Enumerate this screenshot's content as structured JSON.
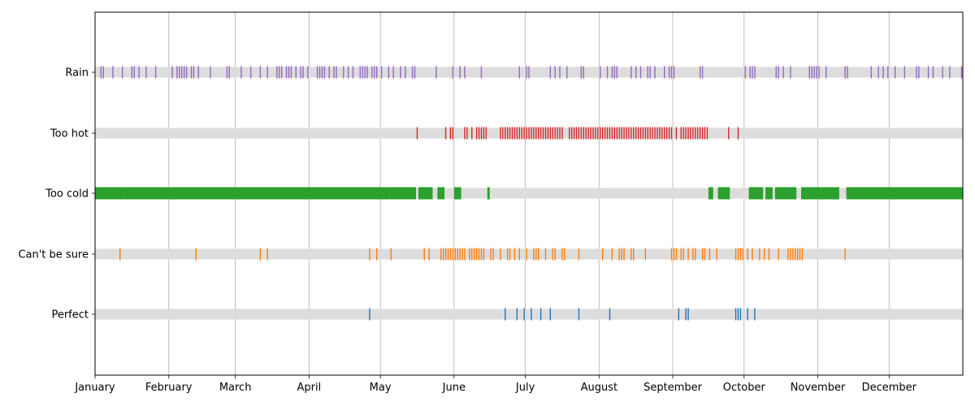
{
  "chart_data": {
    "type": "event-strip",
    "xlabel": "",
    "ylabel": "",
    "grid": "vertical",
    "x_range_day_of_year": [
      1,
      365
    ],
    "month_ticks": [
      {
        "label": "January",
        "day": 1
      },
      {
        "label": "February",
        "day": 32
      },
      {
        "label": "March",
        "day": 60
      },
      {
        "label": "April",
        "day": 91
      },
      {
        "label": "May",
        "day": 121
      },
      {
        "label": "June",
        "day": 152
      },
      {
        "label": "July",
        "day": 182
      },
      {
        "label": "August",
        "day": 213
      },
      {
        "label": "September",
        "day": 244
      },
      {
        "label": "October",
        "day": 274
      },
      {
        "label": "November",
        "day": 305
      },
      {
        "label": "December",
        "day": 335
      }
    ],
    "series": [
      {
        "name": "Perfect",
        "color": "#1f77b4",
        "days": [
          116,
          173,
          178,
          181,
          184,
          188,
          192,
          204,
          217,
          246,
          249,
          250,
          270,
          271,
          272,
          275,
          278
        ]
      },
      {
        "name": "Can't be sure",
        "color": "#ff7f0e",
        "days": [
          11,
          43,
          70,
          73,
          116,
          119,
          125,
          139,
          141,
          146,
          147,
          148,
          149,
          150,
          151,
          152,
          153,
          154,
          155,
          156,
          158,
          159,
          160,
          161,
          162,
          163,
          164,
          167,
          168,
          171,
          174,
          175,
          177,
          179,
          182,
          185,
          186,
          187,
          190,
          193,
          194,
          197,
          198,
          204,
          214,
          218,
          221,
          222,
          223,
          226,
          227,
          232,
          243,
          244,
          245,
          247,
          248,
          250,
          252,
          253,
          256,
          257,
          259,
          262,
          270,
          271,
          272,
          273,
          275,
          277,
          280,
          282,
          284,
          288,
          292,
          293,
          294,
          295,
          296,
          297,
          298,
          316
        ]
      },
      {
        "name": "Too cold",
        "color": "#2ca02c",
        "ranges": [
          [
            1,
            12
          ],
          [
            13,
            124
          ],
          [
            125,
            135
          ],
          [
            137,
            142
          ],
          [
            145,
            147
          ],
          [
            152,
            154
          ],
          [
            166,
            166
          ],
          [
            259,
            260
          ],
          [
            263,
            267
          ],
          [
            276,
            281
          ],
          [
            283,
            285
          ],
          [
            287,
            291
          ],
          [
            292,
            295
          ],
          [
            298,
            313
          ],
          [
            317,
            365
          ]
        ]
      },
      {
        "name": "Too hot",
        "color": "#d62728",
        "days": [
          136,
          148,
          150,
          151,
          156,
          157,
          159,
          161,
          162,
          163,
          164,
          165,
          171,
          172,
          173,
          174,
          175,
          176,
          177,
          178,
          179,
          180,
          181,
          182,
          183,
          184,
          185,
          186,
          187,
          188,
          189,
          190,
          191,
          192,
          193,
          194,
          195,
          196,
          197,
          200,
          201,
          202,
          203,
          204,
          205,
          206,
          207,
          208,
          209,
          210,
          211,
          212,
          213,
          214,
          215,
          216,
          217,
          218,
          219,
          220,
          221,
          222,
          223,
          224,
          225,
          226,
          227,
          228,
          229,
          230,
          231,
          232,
          233,
          234,
          235,
          236,
          237,
          238,
          239,
          240,
          241,
          242,
          243,
          245,
          247,
          248,
          249,
          250,
          251,
          252,
          253,
          254,
          255,
          256,
          257,
          258,
          267,
          271
        ]
      },
      {
        "name": "Rain",
        "color": "#9467bd",
        "days": [
          3,
          4,
          8,
          12,
          16,
          17,
          19,
          22,
          26,
          33,
          35,
          36,
          37,
          38,
          39,
          41,
          42,
          44,
          49,
          56,
          57,
          62,
          66,
          70,
          73,
          77,
          78,
          79,
          81,
          82,
          83,
          85,
          87,
          88,
          90,
          94,
          95,
          96,
          97,
          99,
          101,
          102,
          105,
          107,
          109,
          112,
          113,
          114,
          115,
          117,
          118,
          119,
          121,
          124,
          126,
          129,
          131,
          134,
          135,
          144,
          151,
          154,
          156,
          163,
          179,
          182,
          183,
          192,
          194,
          196,
          199,
          205,
          206,
          213,
          216,
          218,
          219,
          220,
          226,
          228,
          230,
          233,
          234,
          236,
          240,
          242,
          243,
          244,
          255,
          256,
          274,
          276,
          277,
          278,
          287,
          288,
          290,
          293,
          301,
          302,
          303,
          304,
          305,
          308,
          316,
          317,
          327,
          330,
          332,
          334,
          337,
          341,
          346,
          347,
          351,
          353,
          357,
          360,
          365
        ]
      }
    ]
  }
}
